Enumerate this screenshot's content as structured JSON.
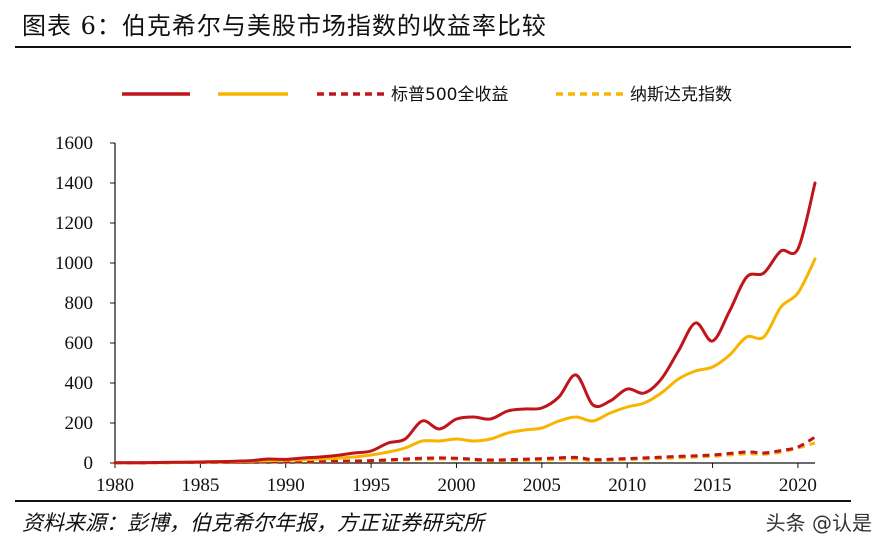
{
  "header": {
    "title": "图表 6：伯克希尔与美股市场指数的收益率比较"
  },
  "footer": {
    "source": "资料来源：彭博，伯克希尔年报，方正证券研究所",
    "watermark": "头条 @认是"
  },
  "colors": {
    "red": "#c0151b",
    "gold": "#f7b500",
    "axis": "#111111"
  },
  "chart_data": {
    "type": "line",
    "title": "",
    "xlabel": "",
    "ylabel": "",
    "xlim": [
      1980,
      2021
    ],
    "ylim": [
      0,
      1600
    ],
    "x_ticks": [
      "1980",
      "1985",
      "1990",
      "1995",
      "2000",
      "2005",
      "2010",
      "2015",
      "2020"
    ],
    "y_ticks": [
      "0",
      "200",
      "400",
      "600",
      "800",
      "1000",
      "1200",
      "1400",
      "1600"
    ],
    "grid": false,
    "legend_position": "top",
    "series": [
      {
        "name": "",
        "color": "#c0151b",
        "style": "solid",
        "x": [
          1980,
          1981,
          1982,
          1983,
          1984,
          1985,
          1986,
          1987,
          1988,
          1989,
          1990,
          1991,
          1992,
          1993,
          1994,
          1995,
          1996,
          1997,
          1998,
          1999,
          2000,
          2001,
          2002,
          2003,
          2004,
          2005,
          2006,
          2007,
          2008,
          2009,
          2010,
          2011,
          2012,
          2013,
          2014,
          2015,
          2016,
          2017,
          2018,
          2019,
          2020,
          2021
        ],
        "values": [
          1,
          1,
          2,
          3,
          4,
          5,
          7,
          9,
          12,
          20,
          18,
          25,
          30,
          38,
          50,
          60,
          100,
          120,
          210,
          170,
          220,
          230,
          220,
          260,
          270,
          275,
          330,
          440,
          290,
          310,
          370,
          350,
          420,
          560,
          700,
          610,
          760,
          930,
          950,
          1060,
          1070,
          1400
        ]
      },
      {
        "name": "",
        "color": "#f7b500",
        "style": "solid",
        "x": [
          1980,
          1981,
          1982,
          1983,
          1984,
          1985,
          1986,
          1987,
          1988,
          1989,
          1990,
          1991,
          1992,
          1993,
          1994,
          1995,
          1996,
          1997,
          1998,
          1999,
          2000,
          2001,
          2002,
          2003,
          2004,
          2005,
          2006,
          2007,
          2008,
          2009,
          2010,
          2011,
          2012,
          2013,
          2014,
          2015,
          2016,
          2017,
          2018,
          2019,
          2020,
          2021
        ],
        "values": [
          1,
          1,
          2,
          2,
          3,
          4,
          5,
          7,
          9,
          12,
          14,
          16,
          20,
          24,
          30,
          40,
          55,
          75,
          110,
          110,
          120,
          110,
          120,
          150,
          165,
          175,
          210,
          230,
          210,
          250,
          280,
          300,
          350,
          420,
          460,
          480,
          540,
          630,
          630,
          780,
          850,
          1020
        ]
      },
      {
        "name": "标普500全收益",
        "color": "#c0151b",
        "style": "dashed",
        "x": [
          1980,
          1983,
          1986,
          1989,
          1992,
          1995,
          1998,
          2000,
          2002,
          2005,
          2007,
          2008,
          2010,
          2013,
          2015,
          2017,
          2018,
          2019,
          2020,
          2021
        ],
        "values": [
          1,
          2,
          3,
          6,
          8,
          12,
          24,
          24,
          15,
          22,
          28,
          17,
          22,
          33,
          40,
          55,
          50,
          62,
          80,
          130
        ]
      },
      {
        "name": "纳斯达克指数",
        "color": "#f7b500",
        "style": "dashed",
        "x": [
          1980,
          1983,
          1986,
          1989,
          1992,
          1995,
          1998,
          2000,
          2002,
          2005,
          2007,
          2008,
          2010,
          2013,
          2015,
          2017,
          2018,
          2019,
          2020,
          2021
        ],
        "values": [
          1,
          2,
          3,
          5,
          7,
          10,
          18,
          20,
          10,
          15,
          20,
          12,
          17,
          26,
          34,
          46,
          44,
          55,
          75,
          100
        ]
      }
    ]
  }
}
